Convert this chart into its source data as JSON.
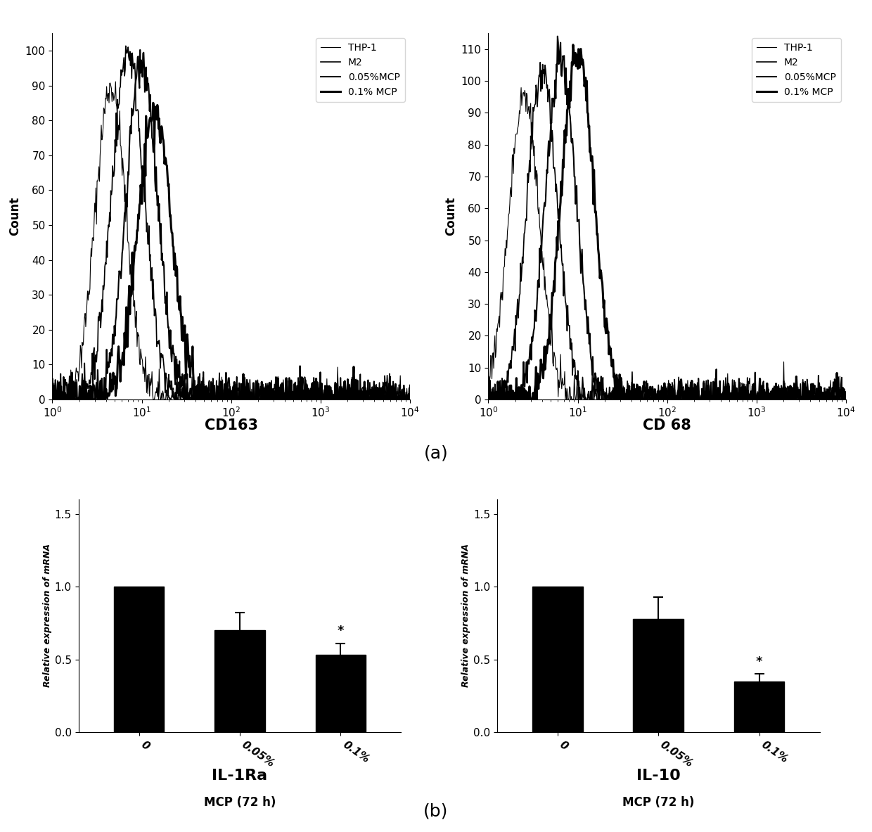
{
  "fig_width": 12.4,
  "fig_height": 11.83,
  "background_color": "#ffffff",
  "flow_legend_labels": [
    "THP-1",
    "M2",
    "0.05%MCP",
    "0.1% MCP"
  ],
  "cd163_ylabel": "Count",
  "cd163_xlabel": "CD163",
  "cd163_ylim": [
    0,
    105
  ],
  "cd163_yticks": [
    0,
    10,
    20,
    30,
    40,
    50,
    60,
    70,
    80,
    90,
    100
  ],
  "cd68_ylabel": "Count",
  "cd68_xlabel": "CD 68",
  "cd68_ylim": [
    0,
    115
  ],
  "cd68_yticks": [
    0,
    10,
    20,
    30,
    40,
    50,
    60,
    70,
    80,
    90,
    100,
    110
  ],
  "bar1_categories": [
    "0",
    "0.05%",
    "0.1%"
  ],
  "bar1_values": [
    1.0,
    0.7,
    0.53
  ],
  "bar1_errors": [
    0.0,
    0.12,
    0.08
  ],
  "bar1_ylabel": "Relative expression of mRNA",
  "bar1_xlabel": "MCP (72 h)",
  "bar1_title": "IL-1Ra",
  "bar1_ylim": [
    0,
    1.6
  ],
  "bar1_yticks": [
    0.0,
    0.5,
    1.0,
    1.5
  ],
  "bar1_star_idx": 2,
  "bar2_categories": [
    "0",
    "0.05%",
    "0.1%"
  ],
  "bar2_values": [
    1.0,
    0.78,
    0.35
  ],
  "bar2_errors": [
    0.0,
    0.15,
    0.05
  ],
  "bar2_ylabel": "Relative expression of mRNA",
  "bar2_xlabel": "MCP (72 h)",
  "bar2_title": "IL-10",
  "bar2_ylim": [
    0,
    1.6
  ],
  "bar2_yticks": [
    0.0,
    0.5,
    1.0,
    1.5
  ],
  "bar2_star_idx": 2,
  "bar_color": "#000000",
  "bar_edgecolor": "#000000",
  "bar_width": 0.5,
  "error_capsize": 5,
  "error_color": "#000000",
  "error_lw": 1.5,
  "label_a": "(a)",
  "label_b": "(b)",
  "label_fontsize": 18,
  "axis_label_fontsize": 12,
  "tick_fontsize": 11,
  "xlabel_bottom_fontsize": 15,
  "title_fontsize": 16
}
